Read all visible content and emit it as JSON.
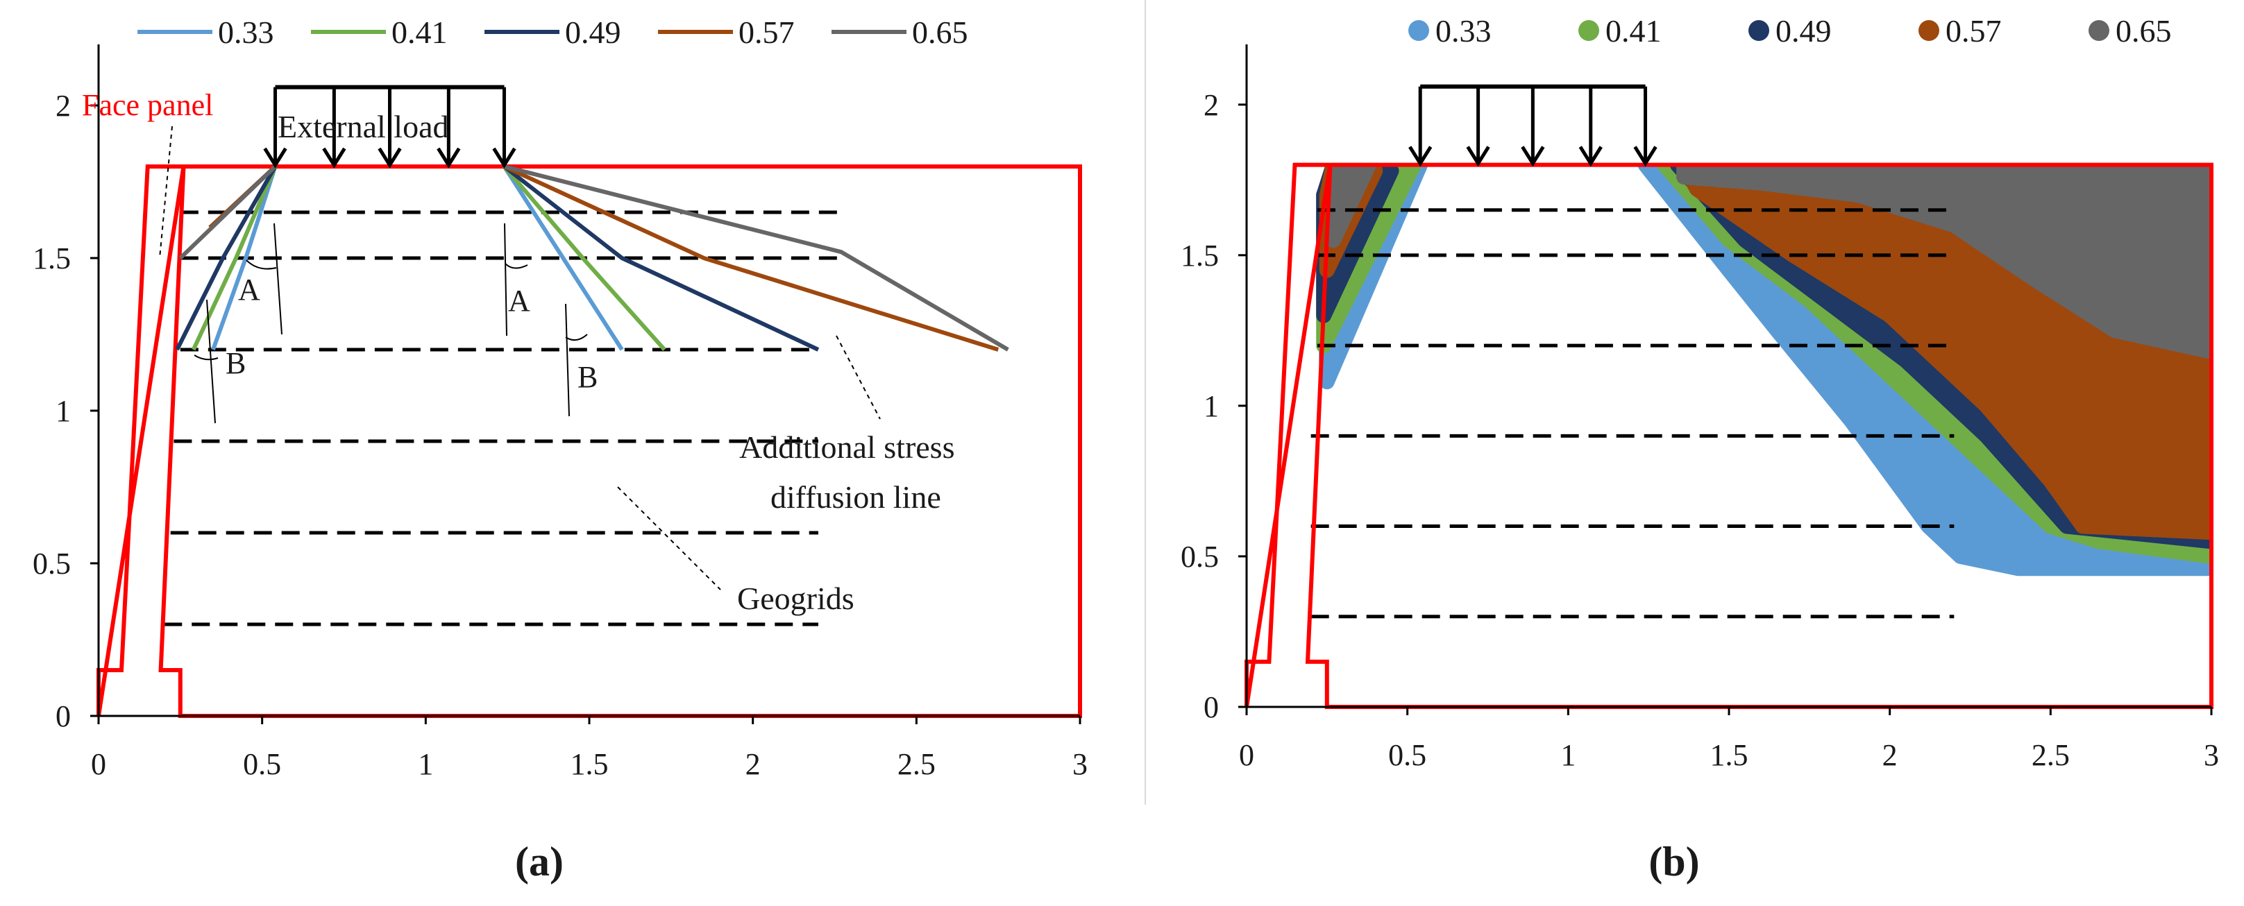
{
  "colors": {
    "frame": "#ff0000",
    "axis": "#000000",
    "geogrid": "#000000",
    "separator": "#d9d9d9",
    "series": [
      "#5b9bd5",
      "#70ad47",
      "#1f3864",
      "#9e480e",
      "#666666"
    ]
  },
  "legend": {
    "a": [
      "0.33",
      "0.41",
      "0.49",
      "0.57",
      "0.65"
    ],
    "b": [
      "0.33",
      "0.41",
      "0.49",
      "0.57",
      "0.65"
    ]
  },
  "annotations": {
    "face_panel": "Face panel",
    "external_load": "External load",
    "additional_stress_1": "Additional stress",
    "additional_stress_2": "diffusion line",
    "geogrids": "Geogrids",
    "angle_a": "A",
    "angle_b": "B"
  },
  "captions": {
    "a": "(a)",
    "b": "(b)"
  },
  "chart_data": [
    {
      "id": "a",
      "type": "line",
      "title": "",
      "xlabel": "",
      "ylabel": "",
      "xlim": [
        0,
        3
      ],
      "ylim": [
        0,
        2.2
      ],
      "xticks": [
        0,
        0.5,
        1,
        1.5,
        2,
        2.5,
        3
      ],
      "xtick_labels": [
        "0",
        "0.5",
        "1",
        "1.5",
        "2",
        "2.5",
        "3"
      ],
      "yticks": [
        0,
        0.5,
        1,
        1.5,
        2
      ],
      "ytick_labels": [
        "0",
        "0.5",
        "1",
        "1.5",
        "2"
      ],
      "grid": false,
      "legend_position": "top",
      "wall_outline": [
        [
          0,
          0
        ],
        [
          0,
          0.15
        ],
        [
          0.07,
          0.15
        ],
        [
          0.15,
          1.8
        ],
        [
          3,
          1.8
        ],
        [
          3,
          0
        ],
        [
          0.25,
          0
        ],
        [
          0.25,
          0.15
        ],
        [
          0.19,
          0.15
        ],
        [
          0.26,
          1.8
        ]
      ],
      "load": {
        "x_start": 0.54,
        "x_end": 1.24,
        "y_top": 2.06,
        "y_bottom": 1.8,
        "arrow_x": [
          0.54,
          0.72,
          0.89,
          1.07,
          1.24
        ]
      },
      "geogrids": [
        {
          "y": 1.65,
          "x_start": 0.25,
          "x_end": 2.27
        },
        {
          "y": 1.5,
          "x_start": 0.25,
          "x_end": 2.27
        },
        {
          "y": 1.2,
          "x_start": 0.25,
          "x_end": 2.2
        },
        {
          "y": 0.9,
          "x_start": 0.23,
          "x_end": 2.2
        },
        {
          "y": 0.6,
          "x_start": 0.22,
          "x_end": 2.2
        },
        {
          "y": 0.3,
          "x_start": 0.2,
          "x_end": 2.2
        }
      ],
      "series": [
        {
          "name": "0.33",
          "left": [
            [
              0.54,
              1.8
            ],
            [
              0.45,
              1.5
            ],
            [
              0.35,
              1.2
            ]
          ],
          "right": [
            [
              1.24,
              1.8
            ],
            [
              1.42,
              1.5
            ],
            [
              1.6,
              1.2
            ]
          ]
        },
        {
          "name": "0.41",
          "left": [
            [
              0.54,
              1.8
            ],
            [
              0.42,
              1.5
            ],
            [
              0.29,
              1.2
            ]
          ],
          "right": [
            [
              1.24,
              1.8
            ],
            [
              1.48,
              1.5
            ],
            [
              1.73,
              1.2
            ]
          ]
        },
        {
          "name": "0.49",
          "left": [
            [
              0.54,
              1.8
            ],
            [
              0.38,
              1.5
            ],
            [
              0.24,
              1.2
            ]
          ],
          "right": [
            [
              1.24,
              1.8
            ],
            [
              1.6,
              1.5
            ],
            [
              2.2,
              1.2
            ]
          ]
        },
        {
          "name": "0.57",
          "left": [
            [
              0.54,
              1.8
            ],
            [
              0.34,
              1.6
            ]
          ],
          "right": [
            [
              1.24,
              1.8
            ],
            [
              1.85,
              1.5
            ],
            [
              2.75,
              1.2
            ]
          ]
        },
        {
          "name": "0.65",
          "left": [
            [
              0.54,
              1.8
            ],
            [
              0.25,
              1.5
            ]
          ],
          "right": [
            [
              1.24,
              1.8
            ],
            [
              2.27,
              1.52
            ],
            [
              2.78,
              1.2
            ]
          ]
        }
      ]
    },
    {
      "id": "b",
      "type": "scatter",
      "title": "",
      "xlabel": "",
      "ylabel": "",
      "xlim": [
        0,
        3
      ],
      "ylim": [
        0,
        2.2
      ],
      "xticks": [
        0,
        0.5,
        1,
        1.5,
        2,
        2.5,
        3
      ],
      "xtick_labels": [
        "0",
        "0.5",
        "1",
        "1.5",
        "2",
        "2.5",
        "3"
      ],
      "yticks": [
        0,
        0.5,
        1,
        1.5,
        2
      ],
      "ytick_labels": [
        "0",
        "0.5",
        "1",
        "1.5",
        "2"
      ],
      "grid": false,
      "legend_position": "top",
      "wall_outline": [
        [
          0,
          0
        ],
        [
          0,
          0.15
        ],
        [
          0.07,
          0.15
        ],
        [
          0.15,
          1.8
        ],
        [
          3,
          1.8
        ],
        [
          3,
          0
        ],
        [
          0.25,
          0
        ],
        [
          0.25,
          0.15
        ],
        [
          0.19,
          0.15
        ],
        [
          0.26,
          1.8
        ]
      ],
      "load": {
        "x_start": 0.54,
        "x_end": 1.24,
        "y_top": 2.06,
        "y_bottom": 1.8,
        "arrow_x": [
          0.54,
          0.72,
          0.89,
          1.07,
          1.24
        ]
      },
      "geogrids": [
        {
          "y": 1.65,
          "x_start": 0.22,
          "x_end": 2.2
        },
        {
          "y": 1.5,
          "x_start": 0.22,
          "x_end": 2.2
        },
        {
          "y": 1.2,
          "x_start": 0.22,
          "x_end": 2.2
        },
        {
          "y": 0.9,
          "x_start": 0.2,
          "x_end": 2.2
        },
        {
          "y": 0.6,
          "x_start": 0.2,
          "x_end": 2.2
        },
        {
          "y": 0.3,
          "x_start": 0.2,
          "x_end": 2.2
        }
      ],
      "zones": [
        {
          "name": "0.33",
          "left_zone": [
            [
              0.25,
              1.08
            ],
            [
              0.54,
              1.8
            ],
            [
              0.3,
              1.8
            ],
            [
              0.24,
              1.7
            ]
          ],
          "right_zone": [
            [
              1.24,
              1.8
            ],
            [
              3,
              1.8
            ],
            [
              3,
              0.46
            ],
            [
              2.4,
              0.46
            ],
            [
              2.22,
              0.5
            ],
            [
              2.12,
              0.6
            ],
            [
              1.88,
              0.95
            ],
            [
              1.65,
              1.25
            ],
            [
              1.5,
              1.45
            ]
          ]
        },
        {
          "name": "0.41",
          "left_zone": [
            [
              0.24,
              1.2
            ],
            [
              0.52,
              1.8
            ],
            [
              0.28,
              1.8
            ],
            [
              0.24,
              1.7
            ]
          ],
          "right_zone": [
            [
              1.3,
              1.8
            ],
            [
              3,
              1.8
            ],
            [
              3,
              0.5
            ],
            [
              2.65,
              0.55
            ],
            [
              2.5,
              0.6
            ],
            [
              2.3,
              0.8
            ],
            [
              2.0,
              1.1
            ],
            [
              1.75,
              1.35
            ],
            [
              1.5,
              1.55
            ]
          ]
        },
        {
          "name": "0.49",
          "left_zone": [
            [
              0.24,
              1.3
            ],
            [
              0.45,
              1.78
            ],
            [
              0.27,
              1.8
            ],
            [
              0.24,
              1.7
            ]
          ],
          "right_zone": [
            [
              1.34,
              1.8
            ],
            [
              3,
              1.8
            ],
            [
              3,
              0.55
            ],
            [
              2.55,
              0.6
            ],
            [
              2.3,
              0.9
            ],
            [
              2.05,
              1.15
            ],
            [
              1.8,
              1.35
            ],
            [
              1.55,
              1.55
            ]
          ]
        },
        {
          "name": "0.57",
          "left_zone": [
            [
              0.25,
              1.45
            ],
            [
              0.4,
              1.78
            ],
            [
              0.27,
              1.8
            ],
            [
              0.25,
              1.7
            ]
          ],
          "right_zone": [
            [
              1.36,
              1.8
            ],
            [
              3,
              1.8
            ],
            [
              3,
              0.58
            ],
            [
              2.6,
              0.6
            ],
            [
              2.5,
              0.75
            ],
            [
              2.3,
              1.0
            ],
            [
              2.0,
              1.3
            ],
            [
              1.7,
              1.5
            ],
            [
              1.4,
              1.72
            ]
          ]
        },
        {
          "name": "0.65",
          "left_zone": [
            [
              0.27,
              1.55
            ],
            [
              0.38,
              1.8
            ],
            [
              0.28,
              1.8
            ],
            [
              0.27,
              1.7
            ]
          ],
          "right_zone": [
            [
              1.36,
              1.8
            ],
            [
              3,
              1.8
            ],
            [
              3,
              1.18
            ],
            [
              2.7,
              1.25
            ],
            [
              2.45,
              1.42
            ],
            [
              2.2,
              1.6
            ],
            [
              1.9,
              1.7
            ],
            [
              1.6,
              1.74
            ],
            [
              1.36,
              1.76
            ]
          ]
        }
      ]
    }
  ]
}
